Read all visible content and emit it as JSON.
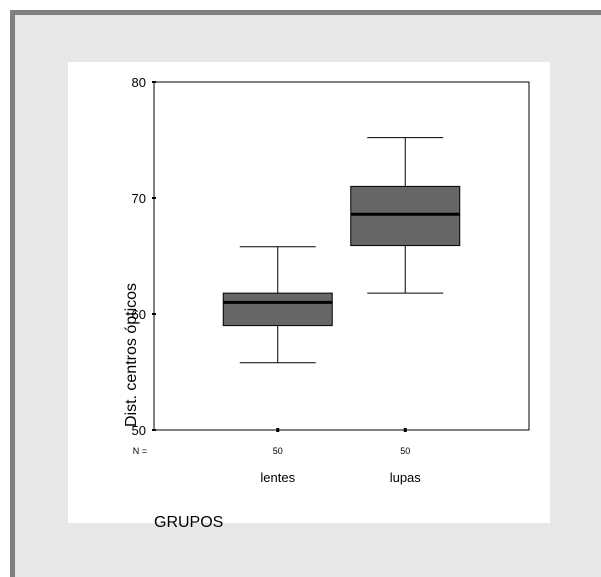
{
  "chart_data": {
    "type": "boxplot",
    "xlabel": "GRUPOS",
    "ylabel": "Dist. centros ópticos",
    "ylim": [
      50,
      80
    ],
    "yticks": [
      50,
      60,
      70,
      80
    ],
    "n_prefix": "N =",
    "categories": [
      "lentes",
      "lupas"
    ],
    "n": [
      "50",
      "50"
    ],
    "boxes": [
      {
        "category": "lentes",
        "whisker_low": 55.8,
        "q1": 59.0,
        "median": 61.0,
        "q3": 61.8,
        "whisker_high": 65.8
      },
      {
        "category": "lupas",
        "whisker_low": 61.8,
        "q1": 65.9,
        "median": 68.6,
        "q3": 71.0,
        "whisker_high": 75.2
      }
    ],
    "box_fill": "#666666",
    "median_color": "#000000",
    "grid": false
  }
}
